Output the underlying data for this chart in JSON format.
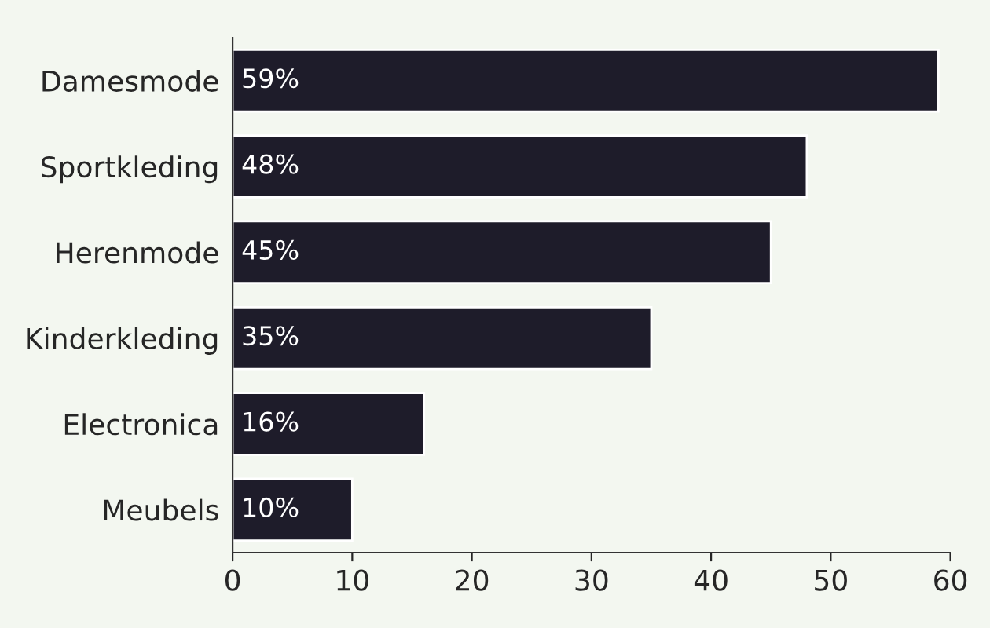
{
  "chart_data": {
    "type": "bar",
    "orientation": "horizontal",
    "categories": [
      "Damesmode",
      "Sportkleding",
      "Herenmode",
      "Kinderkleding",
      "Electronica",
      "Meubels"
    ],
    "values": [
      59,
      48,
      45,
      35,
      16,
      10
    ],
    "value_labels": [
      "59%",
      "48%",
      "45%",
      "35%",
      "16%",
      "10%"
    ],
    "color": "#1e1c2a",
    "xlim": [
      0,
      60
    ],
    "xticks": [
      0,
      10,
      20,
      30,
      40,
      50,
      60
    ],
    "grid": false
  }
}
